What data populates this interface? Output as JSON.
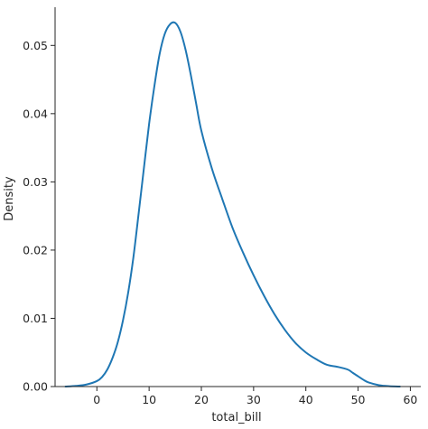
{
  "chart_data": {
    "type": "line",
    "title": "",
    "xlabel": "total_bill",
    "ylabel": "Density",
    "xlim": [
      -8,
      62
    ],
    "ylim": [
      0,
      0.0556
    ],
    "xticks": [
      0,
      10,
      20,
      30,
      40,
      50,
      60
    ],
    "xtick_labels": [
      "0",
      "10",
      "20",
      "30",
      "40",
      "50",
      "60"
    ],
    "yticks": [
      0,
      0.01,
      0.02,
      0.03,
      0.04,
      0.05
    ],
    "ytick_labels": [
      "0.00",
      "0.01",
      "0.02",
      "0.03",
      "0.04",
      "0.05"
    ],
    "grid": false,
    "line_color": "#1f77b4",
    "series": [
      {
        "x": [
          -6,
          -4,
          -2,
          0,
          1,
          2,
          3,
          4,
          5,
          6,
          7,
          8,
          9,
          10,
          11,
          12,
          13,
          14,
          15,
          16,
          17,
          18,
          19,
          20,
          22,
          24,
          26,
          28,
          30,
          32,
          34,
          36,
          38,
          40,
          42,
          44,
          46,
          48,
          49,
          50,
          51,
          52,
          54,
          56,
          58
        ],
        "y": [
          0.0,
          0.0001,
          0.0003,
          0.0008,
          0.0014,
          0.0025,
          0.0042,
          0.0065,
          0.0097,
          0.0138,
          0.019,
          0.0254,
          0.032,
          0.0385,
          0.044,
          0.0487,
          0.0517,
          0.0531,
          0.0533,
          0.052,
          0.0493,
          0.0456,
          0.0415,
          0.0375,
          0.032,
          0.0275,
          0.0232,
          0.0196,
          0.0163,
          0.0133,
          0.0106,
          0.0083,
          0.0064,
          0.005,
          0.004,
          0.0032,
          0.0029,
          0.0025,
          0.002,
          0.0015,
          0.001,
          0.0006,
          0.0002,
          5e-05,
          0.0
        ]
      }
    ]
  }
}
